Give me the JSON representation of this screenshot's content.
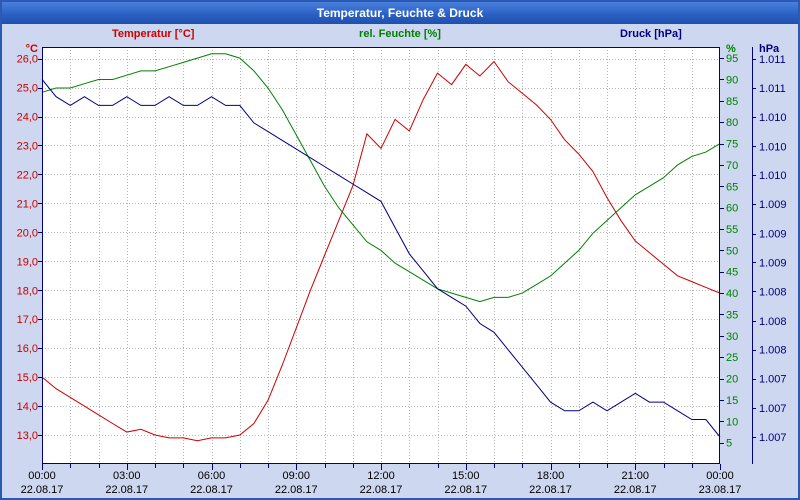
{
  "window": {
    "title": "Temperatur, Feuchte & Druck"
  },
  "legend": {
    "temperature": "Temperatur [°C]",
    "humidity": "rel. Feuchte [%]",
    "pressure": "Druck [hPa]"
  },
  "chart_data": {
    "type": "line",
    "title": "Temperatur, Feuchte & Druck",
    "grid": "dotted",
    "x_axis": {
      "range_hours": [
        0,
        24
      ],
      "minor_grid_hours": 1,
      "label_hours": [
        0,
        3,
        6,
        9,
        12,
        15,
        18,
        21,
        24
      ],
      "time_labels": [
        "00:00",
        "03:00",
        "06:00",
        "09:00",
        "12:00",
        "15:00",
        "18:00",
        "21:00",
        "00:00"
      ],
      "date_labels": [
        "22.08.17",
        "22.08.17",
        "22.08.17",
        "22.08.17",
        "22.08.17",
        "22.08.17",
        "22.08.17",
        "22.08.17",
        "23.08.17"
      ]
    },
    "y_axes": {
      "temperature": {
        "unit": "°C",
        "color": "#cc0000",
        "range": [
          12.0,
          26.4
        ],
        "tick_values": [
          26,
          25,
          24,
          23,
          22,
          21,
          20,
          19,
          18,
          17,
          16,
          15,
          14,
          13
        ],
        "tick_labels": [
          "26,0",
          "25,0",
          "24,0",
          "23,0",
          "22,0",
          "21,0",
          "20,0",
          "19,0",
          "18,0",
          "17,0",
          "16,0",
          "15,0",
          "14,0",
          "13,0"
        ]
      },
      "humidity": {
        "unit": "%",
        "color": "#008000",
        "range": [
          0,
          97.6
        ],
        "tick_values": [
          95,
          90,
          85,
          80,
          75,
          70,
          65,
          60,
          55,
          50,
          45,
          40,
          35,
          30,
          25,
          20,
          15,
          10,
          5
        ],
        "tick_labels": [
          "95",
          "90",
          "85",
          "80",
          "75",
          "70",
          "65",
          "60",
          "55",
          "50",
          "45",
          "40",
          "35",
          "30",
          "25",
          "20",
          "15",
          "10",
          "5"
        ]
      },
      "pressure": {
        "unit": "hPa",
        "color": "#000080",
        "range": [
          1006.69,
          1011.47
        ],
        "tick_values": [
          1011.33,
          1011.0,
          1010.67,
          1010.33,
          1010.0,
          1009.67,
          1009.33,
          1009.0,
          1008.67,
          1008.33,
          1008.0,
          1007.67,
          1007.33,
          1007.0
        ],
        "tick_labels": [
          "1.011",
          "1.011",
          "1.010",
          "1.010",
          "1.010",
          "1.009",
          "1.009",
          "1.009",
          "1.008",
          "1.008",
          "1.008",
          "1.007",
          "1.007",
          "1.007"
        ]
      }
    },
    "x_hours": [
      0,
      0.5,
      1,
      1.5,
      2,
      2.5,
      3,
      3.5,
      4,
      4.5,
      5,
      5.5,
      6,
      6.5,
      7,
      7.5,
      8,
      8.5,
      9,
      9.5,
      10,
      10.5,
      11,
      11.5,
      12,
      12.5,
      13,
      13.5,
      14,
      14.5,
      15,
      15.5,
      16,
      16.5,
      17,
      17.5,
      18,
      18.5,
      19,
      19.5,
      20,
      20.5,
      21,
      21.5,
      22,
      22.5,
      23,
      23.5,
      24
    ],
    "series": [
      {
        "name": "Temperatur",
        "axis": "temperature",
        "color": "#cc0000",
        "values": [
          15.0,
          14.6,
          14.3,
          14.0,
          13.7,
          13.4,
          13.1,
          13.2,
          13.0,
          12.9,
          12.9,
          12.8,
          12.9,
          12.9,
          13.0,
          13.4,
          14.2,
          15.4,
          16.7,
          18.0,
          19.2,
          20.4,
          21.6,
          23.4,
          22.9,
          23.9,
          23.5,
          24.6,
          25.5,
          25.1,
          25.8,
          25.4,
          25.9,
          25.2,
          24.8,
          24.4,
          23.9,
          23.2,
          22.7,
          22.1,
          21.2,
          20.4,
          19.7,
          19.3,
          18.9,
          18.5,
          18.3,
          18.1,
          17.9
        ]
      },
      {
        "name": "rel. Feuchte",
        "axis": "humidity",
        "color": "#008000",
        "values": [
          87,
          88,
          88,
          89,
          90,
          90,
          91,
          92,
          92,
          93,
          94,
          95,
          96,
          96,
          95,
          92,
          88,
          83,
          77,
          71,
          65,
          60,
          56,
          52,
          50,
          47,
          45,
          43,
          41,
          40,
          39,
          38,
          39,
          39,
          40,
          42,
          44,
          47,
          50,
          54,
          57,
          60,
          63,
          65,
          67,
          70,
          72,
          73,
          75
        ]
      },
      {
        "name": "Druck",
        "axis": "pressure",
        "color": "#000080",
        "values": [
          1011.1,
          1010.9,
          1010.8,
          1010.9,
          1010.8,
          1010.8,
          1010.9,
          1010.8,
          1010.8,
          1010.9,
          1010.8,
          1010.8,
          1010.9,
          1010.8,
          1010.8,
          1010.6,
          1010.5,
          1010.4,
          1010.3,
          1010.2,
          1010.1,
          1010.0,
          1009.9,
          1009.8,
          1009.7,
          1009.4,
          1009.1,
          1008.9,
          1008.7,
          1008.6,
          1008.5,
          1008.3,
          1008.2,
          1008.0,
          1007.8,
          1007.6,
          1007.4,
          1007.3,
          1007.3,
          1007.4,
          1007.3,
          1007.4,
          1007.5,
          1007.4,
          1007.4,
          1007.3,
          1007.2,
          1007.2,
          1007.0
        ]
      }
    ]
  }
}
